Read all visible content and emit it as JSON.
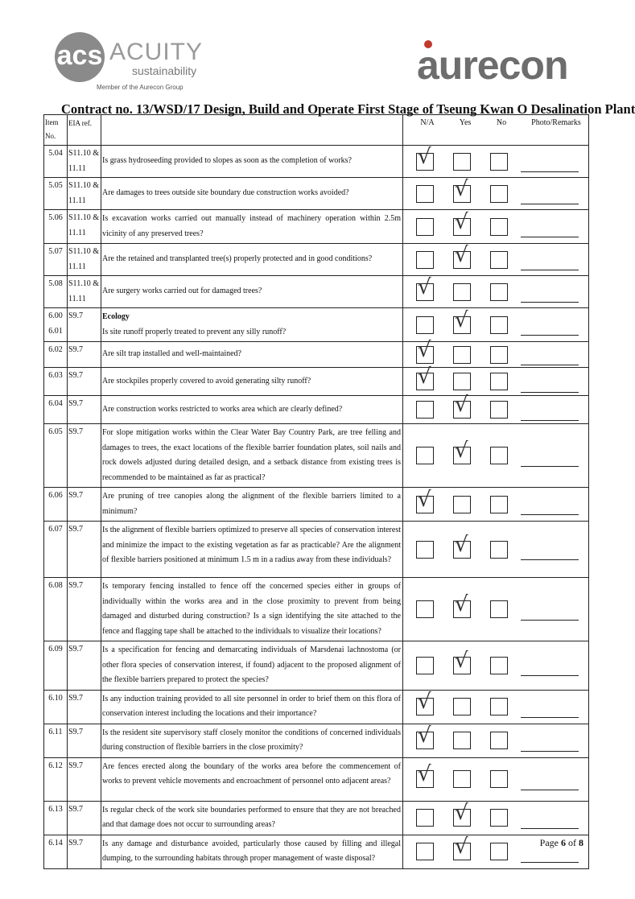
{
  "logos": {
    "left": {
      "mark": "acs",
      "name": "ACUITY",
      "tagline": "sustainability",
      "member": "Member of the Aurecon Group"
    },
    "right": {
      "name": "aurecon",
      "accent": "#c0392b"
    }
  },
  "title": "Contract no.  13/WSD/17 Design, Build and Operate First Stage of Tseung Kwan O Desalination Plant",
  "headers": {
    "item": "Item No.",
    "eia": "EIA ref.",
    "na": "N/A",
    "yes": "Yes",
    "no": "No",
    "remarks": "Photo/Remarks"
  },
  "rows": [
    {
      "item": "5.04",
      "eia": "S11.10 & 11.11",
      "question": "Is grass hydroseeding provided to slopes as soon as the completion of works?",
      "answer": "N/A"
    },
    {
      "item": "5.05",
      "eia": "S11.10 & 11.11",
      "question": "Are damages to trees outside site boundary due construction works avoided?",
      "answer": "Yes"
    },
    {
      "item": "5.06",
      "eia": "S11.10 & 11.11",
      "question": "Is excavation works carried out manually instead of machinery operation within 2.5m vicinity of any preserved trees?",
      "answer": "Yes"
    },
    {
      "item": "5.07",
      "eia": "S11.10 & 11.11",
      "question": "Are the retained and transplanted tree(s) properly protected and in good conditions?",
      "answer": "Yes"
    },
    {
      "item": "5.08",
      "eia": "S11.10 & 11.11",
      "question": "Are surgery works carried out for damaged trees?",
      "answer": "N/A"
    },
    {
      "item": "6.00 6.01",
      "eia": "S9.7",
      "section": "Ecology",
      "question": "Is site runoff properly treated to prevent any silly runoff?",
      "answer": "Yes"
    },
    {
      "item": "6.02",
      "eia": "S9.7",
      "question": "Are silt trap installed and well-maintained?",
      "answer": "N/A"
    },
    {
      "item": "6.03",
      "eia": "S9.7",
      "question": "Are stockpiles properly covered to avoid generating silty runoff?",
      "answer": "N/A"
    },
    {
      "item": "6.04",
      "eia": "S9.7",
      "question": "Are construction works restricted to works area which are clearly defined?",
      "answer": "Yes"
    },
    {
      "item": "6.05",
      "eia": "S9.7",
      "question": "For slope mitigation works within the Clear Water Bay Country Park, are tree felling and damages to trees, the exact locations of the flexible barrier foundation plates, soil nails and rock dowels adjusted during detailed design, and a setback distance from existing trees is recommended to be maintained as far as practical?",
      "answer": "Yes"
    },
    {
      "item": "6.06",
      "eia": "S9.7",
      "question": "Are pruning of tree canopies along the alignment of the flexible barriers limited to a minimum?",
      "answer": "N/A"
    },
    {
      "item": "6.07",
      "eia": "S9.7",
      "question": "Is the alignment of flexible barriers optimized to preserve all species of conservation interest and minimize the impact to the existing vegetation as far as practicable? Are the alignment of flexible barriers positioned at minimum 1.5 m in a radius away from these individuals?",
      "answer": "Yes"
    },
    {
      "item": "6.08",
      "eia": "S9.7",
      "question": "Is temporary fencing installed to fence off the concerned species either in groups of individually within the works area and in the close proximity to prevent from being damaged and disturbed during construction? Is a sign identifying the site attached to the fence and flagging tape shall be attached to the individuals to visualize their locations?",
      "answer": "Yes"
    },
    {
      "item": "6.09",
      "eia": "S9.7",
      "question": "Is a specification for fencing and demarcating individuals of Marsdenai lachnostoma (or other flora species of conservation interest, if found) adjacent to the proposed alignment of the flexible barriers prepared to protect the species?",
      "answer": "Yes"
    },
    {
      "item": "6.10",
      "eia": "S9.7",
      "question": "Is any induction training provided to all site personnel in order to brief them on this flora of conservation interest including the locations and their importance?",
      "answer": "N/A"
    },
    {
      "item": "6.11",
      "eia": "S9.7",
      "question": "Is the resident site supervisory staff closely monitor the conditions of concerned individuals during construction of flexible barriers in the close  proximity?",
      "answer": "N/A"
    },
    {
      "item": "6.12",
      "eia": "S9.7",
      "question": "Are fences erected along the boundary of the works area before the commencement of works to prevent vehicle movements and encroachment of personnel onto adjacent areas?",
      "answer": "N/A"
    },
    {
      "item": "6.13",
      "eia": "S9.7",
      "question": "Is regular check of the work site boundaries performed to ensure that they are not breached and that damage does not occur to surrounding areas?",
      "answer": "Yes"
    },
    {
      "item": "6.14",
      "eia": "S9.7",
      "question": "Is any damage and disturbance avoided, particularly those caused by filling and illegal dumping, to the surrounding habitats through proper management of waste disposal?",
      "answer": "Yes"
    }
  ],
  "footer": {
    "page_label": "Page",
    "page": "6",
    "of": "of",
    "total": "8"
  }
}
